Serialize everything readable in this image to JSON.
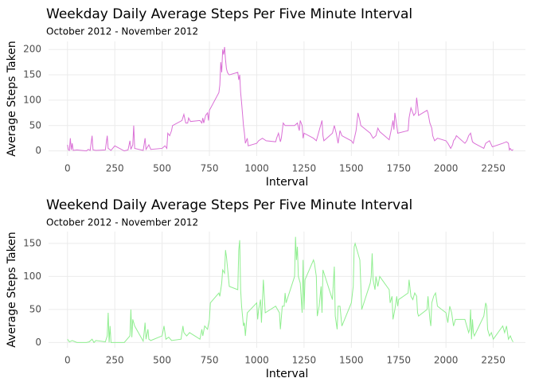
{
  "chart_data": [
    {
      "type": "line",
      "title": "Weekday Daily Average Steps Per Five Minute Interval",
      "subtitle": "October 2012 - November 2012",
      "x_label": "Interval",
      "y_label": "Average Steps Taken",
      "x": [
        0,
        5,
        10,
        15,
        20,
        25,
        30,
        50,
        100,
        110,
        120,
        130,
        135,
        150,
        200,
        210,
        215,
        230,
        250,
        300,
        320,
        330,
        335,
        345,
        350,
        355,
        400,
        410,
        415,
        430,
        440,
        500,
        515,
        525,
        530,
        540,
        550,
        555,
        605,
        615,
        625,
        635,
        640,
        650,
        700,
        710,
        715,
        720,
        730,
        740,
        745,
        750,
        800,
        805,
        810,
        815,
        820,
        825,
        830,
        835,
        840,
        845,
        850,
        855,
        900,
        905,
        910,
        915,
        920,
        930,
        935,
        940,
        945,
        950,
        955,
        1000,
        1010,
        1030,
        1050,
        1100,
        1105,
        1115,
        1125,
        1130,
        1140,
        1150,
        1200,
        1215,
        1225,
        1230,
        1240,
        1245,
        1250,
        1300,
        1315,
        1330,
        1345,
        1350,
        1355,
        1400,
        1410,
        1420,
        1430,
        1440,
        1450,
        1500,
        1510,
        1525,
        1535,
        1545,
        1550,
        1600,
        1615,
        1630,
        1640,
        1650,
        1700,
        1710,
        1720,
        1725,
        1730,
        1740,
        1745,
        1800,
        1805,
        1815,
        1820,
        1830,
        1840,
        1845,
        1850,
        1855,
        1900,
        1905,
        1915,
        1925,
        1930,
        1940,
        1955,
        2000,
        2010,
        2025,
        2035,
        2040,
        2050,
        2055,
        2100,
        2110,
        2120,
        2130,
        2140,
        2150,
        2200,
        2210,
        2230,
        2245,
        2300,
        2320,
        2330,
        2335,
        2340,
        2345,
        2350,
        2355
      ],
      "series": [
        {
          "color": "#da70d6",
          "values": [
            12,
            2,
            1,
            25,
            2,
            15,
            1,
            2,
            0,
            3,
            1,
            30,
            2,
            1,
            2,
            30,
            5,
            1,
            10,
            0,
            2,
            20,
            3,
            12,
            50,
            5,
            1,
            25,
            3,
            12,
            3,
            5,
            10,
            5,
            35,
            30,
            40,
            50,
            60,
            72,
            55,
            55,
            65,
            58,
            60,
            55,
            65,
            55,
            70,
            75,
            60,
            80,
            115,
            130,
            175,
            155,
            200,
            190,
            205,
            180,
            162,
            155,
            152,
            150,
            155,
            140,
            150,
            115,
            95,
            50,
            35,
            15,
            20,
            25,
            10,
            15,
            20,
            25,
            20,
            18,
            25,
            35,
            18,
            25,
            55,
            50,
            50,
            55,
            40,
            60,
            50,
            25,
            35,
            25,
            20,
            40,
            60,
            30,
            20,
            35,
            50,
            35,
            15,
            40,
            30,
            20,
            15,
            40,
            75,
            60,
            50,
            35,
            25,
            30,
            45,
            38,
            22,
            40,
            60,
            42,
            75,
            50,
            35,
            40,
            65,
            85,
            80,
            70,
            75,
            105,
            90,
            70,
            80,
            75,
            55,
            45,
            30,
            20,
            25,
            20,
            15,
            5,
            12,
            20,
            25,
            30,
            15,
            20,
            30,
            35,
            18,
            15,
            5,
            15,
            20,
            8,
            15,
            18,
            15,
            2,
            5,
            2,
            1,
            3
          ]
        }
      ],
      "xlim": [
        -100,
        2420
      ],
      "xticks": [
        0,
        250,
        500,
        750,
        1000,
        1250,
        1500,
        1750,
        2000,
        2250
      ],
      "ylim": [
        -10,
        216
      ],
      "yticks": [
        0,
        50,
        100,
        150,
        200
      ],
      "grid": true
    },
    {
      "type": "line",
      "title": "Weekend Daily Average Steps Per Five Minute Interval",
      "subtitle": "October 2012 - November 2012",
      "x_label": "Interval",
      "y_label": "Average Steps Taken",
      "x": [
        0,
        10,
        25,
        50,
        100,
        115,
        130,
        140,
        150,
        200,
        210,
        215,
        220,
        225,
        230,
        300,
        330,
        335,
        340,
        345,
        355,
        400,
        405,
        410,
        415,
        425,
        430,
        440,
        500,
        510,
        520,
        535,
        550,
        600,
        610,
        615,
        630,
        645,
        700,
        710,
        715,
        725,
        740,
        750,
        755,
        800,
        805,
        815,
        820,
        830,
        835,
        840,
        845,
        850,
        855,
        900,
        905,
        910,
        915,
        920,
        930,
        935,
        940,
        950,
        1000,
        1005,
        1010,
        1020,
        1025,
        1035,
        1045,
        1100,
        1110,
        1120,
        1125,
        1135,
        1145,
        1150,
        1155,
        1200,
        1205,
        1210,
        1215,
        1220,
        1230,
        1240,
        1245,
        1250,
        1255,
        1300,
        1305,
        1315,
        1320,
        1330,
        1340,
        1345,
        1350,
        1400,
        1410,
        1415,
        1425,
        1430,
        1440,
        1450,
        1500,
        1510,
        1515,
        1520,
        1530,
        1545,
        1555,
        1600,
        1605,
        1610,
        1615,
        1625,
        1630,
        1640,
        1650,
        1700,
        1705,
        1715,
        1720,
        1730,
        1740,
        1745,
        1750,
        1800,
        1805,
        1815,
        1825,
        1835,
        1845,
        1850,
        1855,
        1900,
        1905,
        1915,
        1920,
        1925,
        1935,
        1945,
        1955,
        2000,
        2010,
        2020,
        2030,
        2040,
        2050,
        2100,
        2110,
        2120,
        2125,
        2130,
        2135,
        2140,
        2145,
        2150,
        2200,
        2210,
        2215,
        2220,
        2230,
        2240,
        2250,
        2300,
        2310,
        2320,
        2330,
        2340,
        2350,
        2355
      ],
      "series": [
        {
          "color": "#90ee90",
          "values": [
            5,
            1,
            3,
            0,
            0,
            1,
            5,
            0,
            3,
            1,
            10,
            45,
            0,
            25,
            0,
            0,
            10,
            50,
            8,
            35,
            25,
            2,
            15,
            30,
            5,
            20,
            5,
            3,
            10,
            25,
            5,
            8,
            3,
            5,
            25,
            15,
            10,
            15,
            5,
            20,
            10,
            25,
            20,
            35,
            60,
            75,
            70,
            90,
            110,
            105,
            140,
            130,
            115,
            100,
            85,
            80,
            140,
            155,
            80,
            55,
            25,
            30,
            10,
            45,
            60,
            35,
            50,
            65,
            30,
            95,
            45,
            55,
            50,
            45,
            20,
            55,
            55,
            75,
            60,
            100,
            160,
            125,
            145,
            100,
            90,
            45,
            125,
            50,
            95,
            125,
            120,
            100,
            40,
            55,
            85,
            45,
            110,
            65,
            115,
            40,
            20,
            55,
            55,
            25,
            60,
            85,
            145,
            150,
            140,
            125,
            50,
            90,
            100,
            135,
            95,
            80,
            100,
            85,
            100,
            80,
            60,
            70,
            35,
            50,
            70,
            55,
            65,
            75,
            95,
            70,
            65,
            75,
            70,
            45,
            40,
            50,
            70,
            35,
            25,
            60,
            70,
            75,
            55,
            45,
            30,
            55,
            45,
            25,
            35,
            35,
            25,
            15,
            20,
            50,
            5,
            35,
            15,
            10,
            40,
            60,
            55,
            20,
            10,
            15,
            5,
            25,
            15,
            25,
            5,
            10,
            3,
            1
          ]
        }
      ],
      "xlim": [
        -100,
        2420
      ],
      "xticks": [
        0,
        250,
        500,
        750,
        1000,
        1250,
        1500,
        1750,
        2000,
        2250
      ],
      "ylim": [
        -8,
        168
      ],
      "yticks": [
        0,
        50,
        100,
        150
      ],
      "grid": true
    }
  ]
}
